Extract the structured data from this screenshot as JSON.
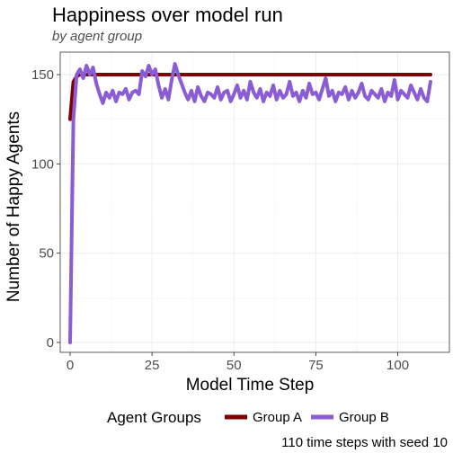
{
  "chart_data": {
    "type": "line",
    "title": "Happiness over model run",
    "subtitle": "by agent group",
    "xlabel": "Model Time Step",
    "ylabel": "Number of Happy Agents",
    "caption": "110 time steps with seed 10",
    "xlim": [
      0,
      110
    ],
    "ylim": [
      0,
      160
    ],
    "x_ticks": [
      0,
      25,
      50,
      75,
      100
    ],
    "x_tick_labels": [
      "0",
      "25",
      "50",
      "75",
      "100"
    ],
    "y_ticks": [
      0,
      50,
      100,
      150
    ],
    "y_tick_labels": [
      "0",
      "50",
      "100",
      "150"
    ],
    "grid": true,
    "legend": {
      "title": "Agent Groups",
      "position": "bottom"
    },
    "x": [
      0,
      1,
      2,
      3,
      4,
      5,
      6,
      7,
      8,
      9,
      10,
      11,
      12,
      13,
      14,
      15,
      16,
      17,
      18,
      19,
      20,
      21,
      22,
      23,
      24,
      25,
      26,
      27,
      28,
      29,
      30,
      31,
      32,
      33,
      34,
      35,
      36,
      37,
      38,
      39,
      40,
      41,
      42,
      43,
      44,
      45,
      46,
      47,
      48,
      49,
      50,
      51,
      52,
      53,
      54,
      55,
      56,
      57,
      58,
      59,
      60,
      61,
      62,
      63,
      64,
      65,
      66,
      67,
      68,
      69,
      70,
      71,
      72,
      73,
      74,
      75,
      76,
      77,
      78,
      79,
      80,
      81,
      82,
      83,
      84,
      85,
      86,
      87,
      88,
      89,
      90,
      91,
      92,
      93,
      94,
      95,
      96,
      97,
      98,
      99,
      100,
      101,
      102,
      103,
      104,
      105,
      106,
      107,
      108,
      109,
      110
    ],
    "series": [
      {
        "name": "Group A",
        "color": "#800000",
        "values": [
          125,
          146,
          149,
          150,
          150,
          150,
          150,
          150,
          150,
          150,
          150,
          150,
          150,
          150,
          150,
          150,
          150,
          150,
          150,
          150,
          150,
          150,
          150,
          150,
          150,
          150,
          150,
          150,
          150,
          150,
          150,
          150,
          150,
          150,
          150,
          150,
          150,
          150,
          150,
          150,
          150,
          150,
          150,
          150,
          150,
          150,
          150,
          150,
          150,
          150,
          150,
          150,
          150,
          150,
          150,
          150,
          150,
          150,
          150,
          150,
          150,
          150,
          150,
          150,
          150,
          150,
          150,
          150,
          150,
          150,
          150,
          150,
          150,
          150,
          150,
          150,
          150,
          150,
          150,
          150,
          150,
          150,
          150,
          150,
          150,
          150,
          150,
          150,
          150,
          150,
          150,
          150,
          150,
          150,
          150,
          150,
          150,
          150,
          150,
          150,
          150,
          150,
          150,
          150,
          150,
          150,
          150,
          150,
          150,
          150,
          150
        ]
      },
      {
        "name": "Group B",
        "color": "#8a5cd6",
        "values": [
          0,
          125,
          150,
          153,
          148,
          155,
          150,
          154,
          145,
          139,
          134,
          140,
          137,
          141,
          135,
          140,
          139,
          142,
          136,
          140,
          141,
          139,
          152,
          149,
          155,
          150,
          153,
          144,
          137,
          142,
          136,
          147,
          156,
          150,
          145,
          140,
          136,
          141,
          135,
          143,
          138,
          135,
          140,
          139,
          137,
          143,
          136,
          140,
          141,
          135,
          139,
          144,
          137,
          141,
          136,
          146,
          140,
          137,
          142,
          135,
          140,
          138,
          144,
          136,
          141,
          137,
          139,
          146,
          138,
          140,
          135,
          141,
          137,
          145,
          139,
          140,
          136,
          142,
          148,
          138,
          141,
          135,
          140,
          139,
          143,
          136,
          141,
          137,
          140,
          145,
          138,
          136,
          141,
          139,
          137,
          142,
          135,
          140,
          138,
          147,
          136,
          141,
          139,
          137,
          144,
          140,
          136,
          142,
          137,
          135,
          146
        ]
      }
    ]
  }
}
